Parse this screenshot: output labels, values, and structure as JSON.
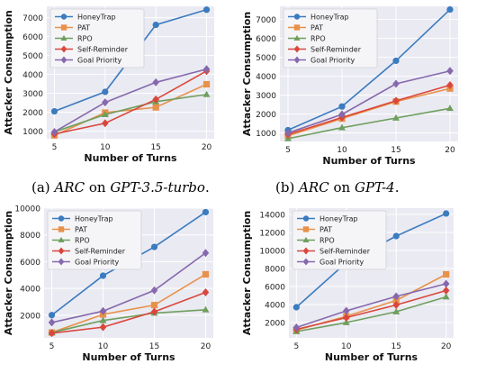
{
  "colors": {
    "HoneyTrap": "#3b7bbf",
    "PAT": "#e8914a",
    "RPO": "#6f9f5e",
    "Self-Reminder": "#d9473c",
    "Goal Priority": "#8668ad",
    "plot_bg": "#eaeaf2"
  },
  "captions": [
    {
      "label": "(a)",
      "dataset": "ARC",
      "on": "on",
      "model": "GPT-3.5-turbo",
      "end": "."
    },
    {
      "label": "(b)",
      "dataset": "ARC",
      "on": "on",
      "model": "GPT-4",
      "end": "."
    }
  ],
  "chart_data": [
    {
      "type": "line",
      "xlabel": "Number of Turns",
      "ylabel": "Attacker Consumption",
      "x": [
        5,
        10,
        15,
        20
      ],
      "ylim": [
        600,
        7600
      ],
      "yticks": [
        1000,
        2000,
        3000,
        4000,
        5000,
        6000,
        7000
      ],
      "grid": true,
      "legend": "top-left",
      "series": [
        {
          "name": "HoneyTrap",
          "marker": "circle",
          "values": [
            2050,
            3080,
            6620,
            7420
          ]
        },
        {
          "name": "PAT",
          "marker": "square",
          "values": [
            780,
            1980,
            2260,
            3480
          ]
        },
        {
          "name": "RPO",
          "marker": "triangle",
          "values": [
            960,
            1880,
            2560,
            2940
          ]
        },
        {
          "name": "Self-Reminder",
          "marker": "diamond",
          "values": [
            850,
            1420,
            2680,
            4180
          ]
        },
        {
          "name": "Goal Priority",
          "marker": "diamond",
          "values": [
            960,
            2520,
            3580,
            4280
          ]
        }
      ]
    },
    {
      "type": "line",
      "xlabel": "Number of Turns",
      "ylabel": "Attacker Consumption",
      "x": [
        5,
        10,
        15,
        20
      ],
      "ylim": [
        550,
        7700
      ],
      "yticks": [
        1000,
        2000,
        3000,
        4000,
        5000,
        6000,
        7000
      ],
      "grid": true,
      "legend": "top-left",
      "series": [
        {
          "name": "HoneyTrap",
          "marker": "circle",
          "values": [
            1150,
            2400,
            4820,
            7530
          ]
        },
        {
          "name": "PAT",
          "marker": "square",
          "values": [
            850,
            1760,
            2660,
            3350
          ]
        },
        {
          "name": "RPO",
          "marker": "triangle",
          "values": [
            700,
            1280,
            1790,
            2300
          ]
        },
        {
          "name": "Self-Reminder",
          "marker": "diamond",
          "values": [
            920,
            1820,
            2700,
            3530
          ]
        },
        {
          "name": "Goal Priority",
          "marker": "diamond",
          "values": [
            1000,
            1980,
            3600,
            4280
          ]
        }
      ]
    },
    {
      "type": "line",
      "xlabel": "Number of Turns",
      "ylabel": "Attacker Consumption",
      "x": [
        5,
        10,
        15,
        20
      ],
      "ylim": [
        300,
        10000
      ],
      "yticks": [
        2000,
        4000,
        6000,
        8000,
        10000
      ],
      "grid": true,
      "legend": "top-left",
      "series": [
        {
          "name": "HoneyTrap",
          "marker": "circle",
          "values": [
            2000,
            4950,
            7100,
            9700
          ]
        },
        {
          "name": "PAT",
          "marker": "square",
          "values": [
            700,
            2050,
            2750,
            5050
          ]
        },
        {
          "name": "RPO",
          "marker": "triangle",
          "values": [
            700,
            1600,
            2150,
            2400
          ]
        },
        {
          "name": "Self-Reminder",
          "marker": "diamond",
          "values": [
            650,
            1100,
            2250,
            3700
          ]
        },
        {
          "name": "Goal Priority",
          "marker": "diamond",
          "values": [
            1450,
            2300,
            3850,
            6650
          ]
        }
      ]
    },
    {
      "type": "line",
      "xlabel": "Number of Turns",
      "ylabel": "Attacker Consumption",
      "x": [
        5,
        10,
        15,
        20
      ],
      "ylim": [
        300,
        14700
      ],
      "yticks": [
        2000,
        4000,
        6000,
        8000,
        10000,
        12000,
        14000
      ],
      "grid": true,
      "legend": "top-left",
      "series": [
        {
          "name": "HoneyTrap",
          "marker": "circle",
          "values": [
            3700,
            8650,
            11600,
            14100
          ]
        },
        {
          "name": "PAT",
          "marker": "square",
          "values": [
            1150,
            2700,
            4450,
            7350
          ]
        },
        {
          "name": "RPO",
          "marker": "triangle",
          "values": [
            1000,
            2000,
            3200,
            4850
          ]
        },
        {
          "name": "Self-Reminder",
          "marker": "diamond",
          "values": [
            1250,
            2550,
            3950,
            5550
          ]
        },
        {
          "name": "Goal Priority",
          "marker": "diamond",
          "values": [
            1450,
            3300,
            4900,
            6300
          ]
        }
      ]
    }
  ]
}
